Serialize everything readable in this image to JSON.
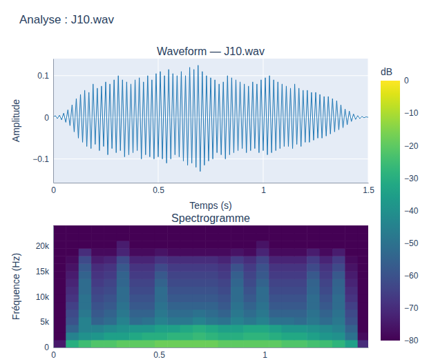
{
  "title": "Analyse : J10.wav",
  "chart_data": [
    {
      "type": "line",
      "title": "Waveform — J10.wav",
      "x_label": "Temps (s)",
      "y_label": "Amplitude",
      "color": "#1f77b4",
      "x": [
        0,
        0.01,
        0.02,
        0.03,
        0.04,
        0.05,
        0.06,
        0.07,
        0.08,
        0.09,
        0.1,
        0.11,
        0.12,
        0.13,
        0.14,
        0.15,
        0.16,
        0.17,
        0.18,
        0.19,
        0.2,
        0.21,
        0.22,
        0.23,
        0.24,
        0.25,
        0.26,
        0.27,
        0.28,
        0.29,
        0.3,
        0.31,
        0.32,
        0.33,
        0.34,
        0.35,
        0.36,
        0.37,
        0.38,
        0.39,
        0.4,
        0.41,
        0.42,
        0.43,
        0.44,
        0.45,
        0.46,
        0.47,
        0.48,
        0.49,
        0.5,
        0.51,
        0.52,
        0.53,
        0.54,
        0.55,
        0.56,
        0.57,
        0.58,
        0.59,
        0.6,
        0.61,
        0.62,
        0.63,
        0.64,
        0.65,
        0.66,
        0.67,
        0.68,
        0.69,
        0.7,
        0.71,
        0.72,
        0.73,
        0.74,
        0.75,
        0.76,
        0.77,
        0.78,
        0.79,
        0.8,
        0.81,
        0.82,
        0.83,
        0.84,
        0.85,
        0.86,
        0.87,
        0.88,
        0.89,
        0.9,
        0.91,
        0.92,
        0.93,
        0.94,
        0.95,
        0.96,
        0.97,
        0.98,
        0.99,
        1,
        1.01,
        1.02,
        1.03,
        1.04,
        1.05,
        1.06,
        1.07,
        1.08,
        1.09,
        1.1,
        1.11,
        1.12,
        1.13,
        1.14,
        1.15,
        1.16,
        1.17,
        1.18,
        1.19,
        1.2,
        1.21,
        1.22,
        1.23,
        1.24,
        1.25,
        1.26,
        1.27,
        1.28,
        1.29,
        1.3,
        1.31,
        1.32,
        1.33,
        1.34,
        1.35,
        1.36,
        1.37,
        1.38,
        1.39,
        1.4,
        1.41,
        1.42,
        1.43,
        1.44,
        1.45,
        1.46,
        1.47,
        1.48,
        1.49,
        1.5
      ],
      "values": [
        0,
        0.004,
        -0.003,
        0.005,
        -0.006,
        0.01,
        -0.012,
        0.018,
        -0.02,
        0.03,
        -0.035,
        0.045,
        -0.05,
        0.055,
        -0.06,
        0.065,
        -0.07,
        0.06,
        -0.075,
        0.08,
        -0.065,
        0.07,
        -0.08,
        0.075,
        -0.07,
        0.085,
        -0.09,
        0.08,
        -0.075,
        0.09,
        -0.085,
        0.1,
        -0.08,
        0.09,
        -0.095,
        0.085,
        -0.09,
        0.08,
        -0.085,
        0.09,
        -0.08,
        0.095,
        -0.1,
        0.085,
        -0.09,
        0.1,
        -0.095,
        0.09,
        -0.1,
        0.105,
        -0.095,
        0.11,
        -0.1,
        0.1,
        -0.11,
        0.115,
        -0.1,
        0.105,
        -0.09,
        0.1,
        -0.095,
        0.11,
        -0.105,
        0.1,
        -0.115,
        0.12,
        -0.11,
        0.115,
        -0.12,
        0.125,
        -0.13,
        0.11,
        -0.115,
        0.1,
        -0.105,
        0.095,
        -0.1,
        0.09,
        -0.085,
        0.08,
        -0.09,
        0.085,
        -0.1,
        0.1,
        -0.09,
        0.095,
        -0.085,
        0.09,
        -0.08,
        0.085,
        -0.075,
        0.08,
        -0.085,
        0.075,
        -0.08,
        0.085,
        -0.075,
        0.08,
        -0.085,
        0.09,
        -0.08,
        0.095,
        -0.09,
        0.1,
        -0.085,
        0.09,
        -0.08,
        0.085,
        -0.075,
        0.08,
        -0.07,
        0.075,
        -0.07,
        0.07,
        -0.075,
        0.08,
        -0.065,
        0.07,
        -0.07,
        0.065,
        -0.06,
        0.065,
        -0.06,
        0.06,
        -0.055,
        0.06,
        -0.05,
        0.055,
        -0.05,
        0.05,
        -0.045,
        0.05,
        -0.04,
        0.045,
        -0.035,
        0.04,
        -0.03,
        0.03,
        -0.025,
        0.02,
        -0.018,
        0.015,
        -0.01,
        0.008,
        -0.005,
        0.004,
        -0.003,
        0.002,
        -0.001,
        0.001,
        0
      ],
      "xlim": [
        0,
        1.5
      ],
      "xticks": [
        0,
        0.5,
        1,
        1.5
      ],
      "ylim": [
        -0.157,
        0.141
      ],
      "yticks": [
        {
          "value": -0.1,
          "label": "−0.1"
        },
        0,
        0.1
      ],
      "grid": true
    },
    {
      "type": "heatmap",
      "title": "Spectrogramme",
      "y_label": "Fréquence (Hz)",
      "x_edges": [
        0,
        0.06,
        0.12,
        0.18,
        0.24,
        0.3,
        0.36,
        0.42,
        0.48,
        0.54,
        0.6,
        0.66,
        0.72,
        0.78,
        0.84,
        0.9,
        0.96,
        1.02,
        1.08,
        1.14,
        1.2,
        1.26,
        1.32,
        1.38,
        1.44,
        1.5
      ],
      "y_edges": [
        0,
        1500,
        3000,
        4500,
        6000,
        7500,
        9000,
        10500,
        12000,
        13500,
        15000,
        16500,
        18000,
        19500,
        21000,
        22500,
        24000
      ],
      "cells": [
        [
          -75,
          -30,
          -25,
          -22,
          -22,
          -20,
          -20,
          -20,
          -18,
          -18,
          -18,
          -18,
          -18,
          -20,
          -20,
          -20,
          -20,
          -20,
          -22,
          -22,
          -24,
          -25,
          -28,
          -35,
          -70
        ],
        [
          -80,
          -45,
          -40,
          -38,
          -35,
          -35,
          -32,
          -30,
          -30,
          -28,
          -28,
          -26,
          -28,
          -30,
          -30,
          -28,
          -28,
          -30,
          -32,
          -32,
          -35,
          -38,
          -40,
          -50,
          -78
        ],
        [
          -80,
          -55,
          -45,
          -45,
          -42,
          -40,
          -38,
          -38,
          -35,
          -35,
          -32,
          -30,
          -32,
          -35,
          -35,
          -32,
          -32,
          -35,
          -38,
          -38,
          -40,
          -42,
          -45,
          -55,
          -80
        ],
        [
          -80,
          -60,
          -45,
          -55,
          -52,
          -45,
          -52,
          -50,
          -45,
          -48,
          -48,
          -45,
          -48,
          -50,
          -45,
          -48,
          -45,
          -50,
          -50,
          -52,
          -48,
          -52,
          -48,
          -60,
          -80
        ],
        [
          -80,
          -62,
          -48,
          -58,
          -55,
          -48,
          -55,
          -55,
          -48,
          -52,
          -52,
          -50,
          -52,
          -55,
          -48,
          -52,
          -48,
          -55,
          -55,
          -55,
          -50,
          -55,
          -50,
          -62,
          -80
        ],
        [
          -80,
          -65,
          -50,
          -60,
          -58,
          -50,
          -58,
          -58,
          -50,
          -55,
          -55,
          -55,
          -55,
          -58,
          -50,
          -55,
          -50,
          -58,
          -58,
          -58,
          -52,
          -58,
          -52,
          -65,
          -80
        ],
        [
          -80,
          -68,
          -50,
          -62,
          -60,
          -52,
          -60,
          -60,
          -52,
          -58,
          -58,
          -58,
          -58,
          -60,
          -52,
          -58,
          -52,
          -60,
          -60,
          -60,
          -52,
          -60,
          -52,
          -68,
          -80
        ],
        [
          -80,
          -70,
          -52,
          -64,
          -62,
          -52,
          -62,
          -62,
          -52,
          -60,
          -60,
          -60,
          -60,
          -62,
          -52,
          -60,
          -52,
          -62,
          -62,
          -62,
          -54,
          -62,
          -54,
          -70,
          -80
        ],
        [
          -80,
          -72,
          -52,
          -66,
          -64,
          -54,
          -64,
          -64,
          -55,
          -62,
          -62,
          -62,
          -62,
          -64,
          -54,
          -62,
          -55,
          -64,
          -64,
          -64,
          -55,
          -64,
          -55,
          -72,
          -80
        ],
        [
          -80,
          -74,
          -55,
          -68,
          -66,
          -55,
          -66,
          -66,
          -58,
          -64,
          -64,
          -64,
          -64,
          -66,
          -56,
          -64,
          -58,
          -66,
          -66,
          -66,
          -58,
          -66,
          -58,
          -74,
          -80
        ],
        [
          -80,
          -76,
          -58,
          -70,
          -68,
          -58,
          -68,
          -68,
          -62,
          -66,
          -66,
          -66,
          -66,
          -68,
          -60,
          -66,
          -60,
          -68,
          -68,
          -68,
          -62,
          -68,
          -62,
          -76,
          -80
        ],
        [
          -80,
          -78,
          -62,
          -74,
          -72,
          -62,
          -72,
          -72,
          -68,
          -70,
          -70,
          -70,
          -70,
          -72,
          -66,
          -70,
          -64,
          -72,
          -72,
          -72,
          -66,
          -72,
          -66,
          -78,
          -80
        ],
        [
          -80,
          -80,
          -70,
          -78,
          -78,
          -72,
          -78,
          -78,
          -76,
          -78,
          -78,
          -78,
          -78,
          -78,
          -76,
          -78,
          -72,
          -78,
          -78,
          -78,
          -74,
          -78,
          -74,
          -80,
          -80
        ],
        [
          -80,
          -80,
          -80,
          -80,
          -80,
          -74,
          -80,
          -80,
          -80,
          -80,
          -80,
          -80,
          -80,
          -80,
          -80,
          -80,
          -76,
          -80,
          -80,
          -80,
          -80,
          -80,
          -80,
          -80,
          -80
        ],
        [
          -80,
          -80,
          -80,
          -80,
          -80,
          -80,
          -80,
          -80,
          -80,
          -80,
          -80,
          -80,
          -80,
          -80,
          -80,
          -80,
          -80,
          -80,
          -80,
          -80,
          -80,
          -80,
          -80,
          -80,
          -80
        ],
        [
          -80,
          -80,
          -80,
          -80,
          -80,
          -80,
          -80,
          -80,
          -80,
          -80,
          -80,
          -80,
          -80,
          -80,
          -80,
          -80,
          -80,
          -80,
          -80,
          -80,
          -80,
          -80,
          -80,
          -80,
          -80
        ]
      ],
      "xlim": [
        0,
        1.49
      ],
      "xticks": [
        0,
        0.5,
        1
      ],
      "ylim": [
        0,
        24000
      ],
      "yticks": [
        0,
        {
          "value": 5000,
          "label": "5k"
        },
        {
          "value": 10000,
          "label": "10k"
        },
        {
          "value": 15000,
          "label": "15k"
        },
        {
          "value": 20000,
          "label": "20k"
        }
      ],
      "grid": false,
      "colorbar": {
        "title": "dB",
        "range": [
          -80,
          0
        ],
        "ticks": [
          0,
          {
            "value": -10,
            "label": "−10"
          },
          {
            "value": -20,
            "label": "−20"
          },
          {
            "value": -30,
            "label": "−30"
          },
          {
            "value": -40,
            "label": "−40"
          },
          {
            "value": -50,
            "label": "−50"
          },
          {
            "value": -60,
            "label": "−60"
          },
          {
            "value": -70,
            "label": "−70"
          },
          {
            "value": -80,
            "label": "−80"
          }
        ]
      }
    }
  ]
}
